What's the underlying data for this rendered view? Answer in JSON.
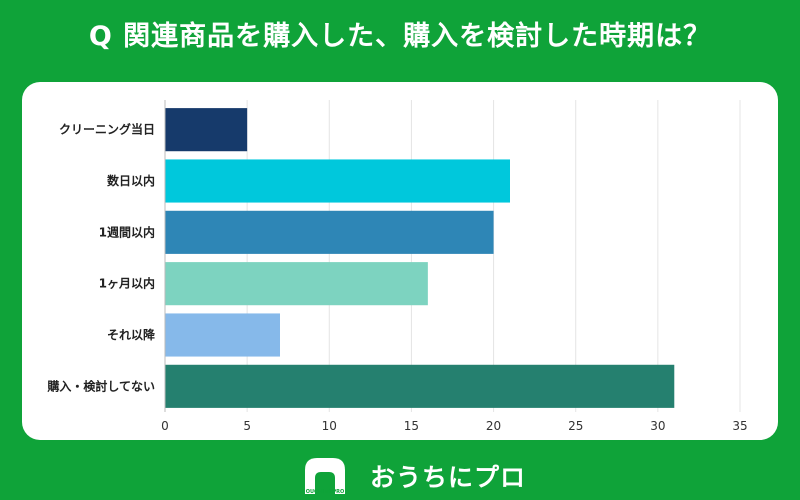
{
  "header": {
    "question": "Q 関連商品を購入した、購入を検討した時期は？"
  },
  "chart_data": {
    "type": "bar",
    "orientation": "horizontal",
    "title": "",
    "xlabel": "",
    "ylabel": "",
    "categories": [
      "クリーニング当日",
      "数日以内",
      "1週間以内",
      "1ヶ月以内",
      "それ以降",
      "購入・検討してない"
    ],
    "values": [
      5,
      21,
      20,
      16,
      7,
      31
    ],
    "colors": [
      "#163a6b",
      "#00c8dc",
      "#2e86b6",
      "#7dd3c0",
      "#86b9ea",
      "#25806f"
    ],
    "xlim": [
      0,
      35
    ],
    "xticks": [
      0,
      5,
      10,
      15,
      20,
      25,
      30,
      35
    ],
    "grid": true
  },
  "footer": {
    "logo_text": "OUCHI ni PRO",
    "brand": "おうちにプロ"
  }
}
